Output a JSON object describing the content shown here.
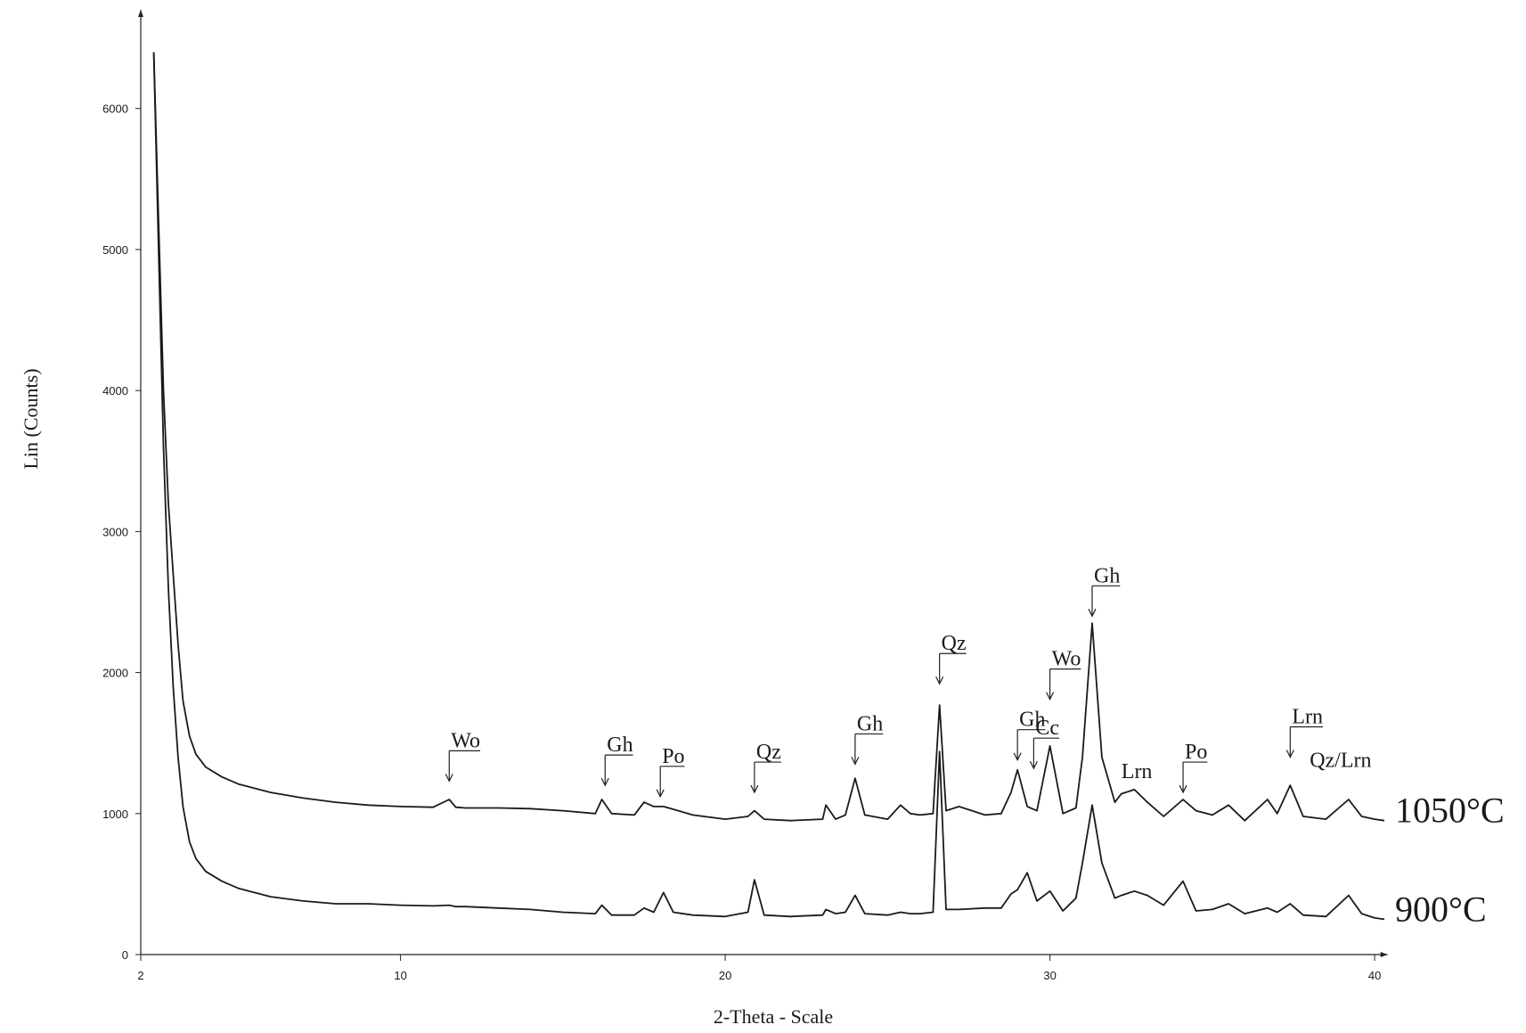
{
  "chart_data": {
    "type": "line",
    "xlabel": "2-Theta - Scale",
    "ylabel": "Lin (Counts)",
    "xlim": [
      2,
      40.4
    ],
    "ylim": [
      0,
      6700
    ],
    "xticks": [
      2,
      10,
      20,
      30,
      40
    ],
    "yticks": [
      0,
      1000,
      2000,
      3000,
      4000,
      5000,
      6000
    ],
    "x": [
      2.4,
      2.55,
      2.7,
      2.85,
      3.0,
      3.15,
      3.3,
      3.5,
      3.7,
      4.0,
      4.5,
      5,
      6,
      7,
      8,
      9,
      10,
      11,
      11.5,
      11.7,
      12,
      13,
      14,
      15,
      16,
      16.2,
      16.5,
      17.2,
      17.5,
      17.8,
      18.1,
      18.4,
      19,
      20,
      20.7,
      20.9,
      21.2,
      22,
      23,
      23.1,
      23.4,
      23.7,
      24.0,
      24.3,
      25,
      25.4,
      25.7,
      26,
      26.4,
      26.6,
      26.8,
      27.2,
      28,
      28.5,
      28.8,
      29.0,
      29.3,
      29.6,
      30.0,
      30.4,
      30.8,
      31.0,
      31.3,
      31.6,
      32,
      32.2,
      32.6,
      33,
      33.5,
      34.1,
      34.5,
      35,
      35.5,
      36,
      36.7,
      37.0,
      37.4,
      37.8,
      38.5,
      39.2,
      39.6,
      40,
      40.3
    ],
    "series": [
      {
        "name": "1050°C",
        "color": "#1a1a1a",
        "values": [
          6400,
          5200,
          4000,
          3200,
          2700,
          2200,
          1800,
          1550,
          1420,
          1330,
          1260,
          1210,
          1150,
          1110,
          1080,
          1060,
          1050,
          1045,
          1100,
          1045,
          1040,
          1040,
          1035,
          1020,
          1000,
          1100,
          1000,
          990,
          1080,
          1050,
          1050,
          1030,
          990,
          960,
          980,
          1020,
          960,
          950,
          960,
          1060,
          960,
          990,
          1250,
          990,
          960,
          1060,
          1000,
          990,
          1000,
          1770,
          1020,
          1050,
          990,
          1000,
          1150,
          1310,
          1050,
          1020,
          1480,
          1000,
          1040,
          1400,
          2350,
          1400,
          1080,
          1140,
          1170,
          1080,
          980,
          1100,
          1020,
          990,
          1060,
          950,
          1100,
          1000,
          1200,
          980,
          960,
          1100,
          980,
          960,
          950
        ]
      },
      {
        "name": "900°C",
        "color": "#1a1a1a",
        "values": [
          6400,
          5000,
          3600,
          2600,
          1900,
          1400,
          1050,
          800,
          680,
          590,
          520,
          470,
          410,
          380,
          360,
          360,
          350,
          345,
          350,
          340,
          340,
          330,
          320,
          300,
          290,
          350,
          280,
          280,
          330,
          300,
          440,
          300,
          280,
          270,
          300,
          530,
          280,
          270,
          280,
          320,
          290,
          300,
          420,
          290,
          280,
          300,
          290,
          290,
          300,
          1440,
          320,
          320,
          330,
          330,
          430,
          460,
          580,
          380,
          450,
          310,
          400,
          650,
          1060,
          650,
          400,
          420,
          450,
          420,
          350,
          520,
          310,
          320,
          360,
          290,
          330,
          300,
          360,
          280,
          270,
          420,
          290,
          260,
          250
        ]
      }
    ],
    "annotations": [
      {
        "text": "Wo",
        "x": 11.5,
        "y": 1230
      },
      {
        "text": "Gh",
        "x": 16.3,
        "y": 1200
      },
      {
        "text": "Po",
        "x": 18.0,
        "y": 1120
      },
      {
        "text": "Qz",
        "x": 20.9,
        "y": 1150
      },
      {
        "text": "Gh",
        "x": 24.0,
        "y": 1350
      },
      {
        "text": "Qz",
        "x": 26.6,
        "y": 1920
      },
      {
        "text": "Gh",
        "x": 29.0,
        "y": 1380
      },
      {
        "text": "Cc",
        "x": 29.5,
        "y": 1320
      },
      {
        "text": "Wo",
        "x": 30.0,
        "y": 1810
      },
      {
        "text": "Gh",
        "x": 31.3,
        "y": 2400
      },
      {
        "text": "Lrn",
        "x": 32.2,
        "y": 1250,
        "arrow": false
      },
      {
        "text": "Po",
        "x": 34.1,
        "y": 1150
      },
      {
        "text": "Lrn",
        "x": 37.4,
        "y": 1400
      },
      {
        "text": "Qz/Lrn",
        "x": 38.0,
        "y": 1330,
        "arrow": false
      }
    ]
  }
}
